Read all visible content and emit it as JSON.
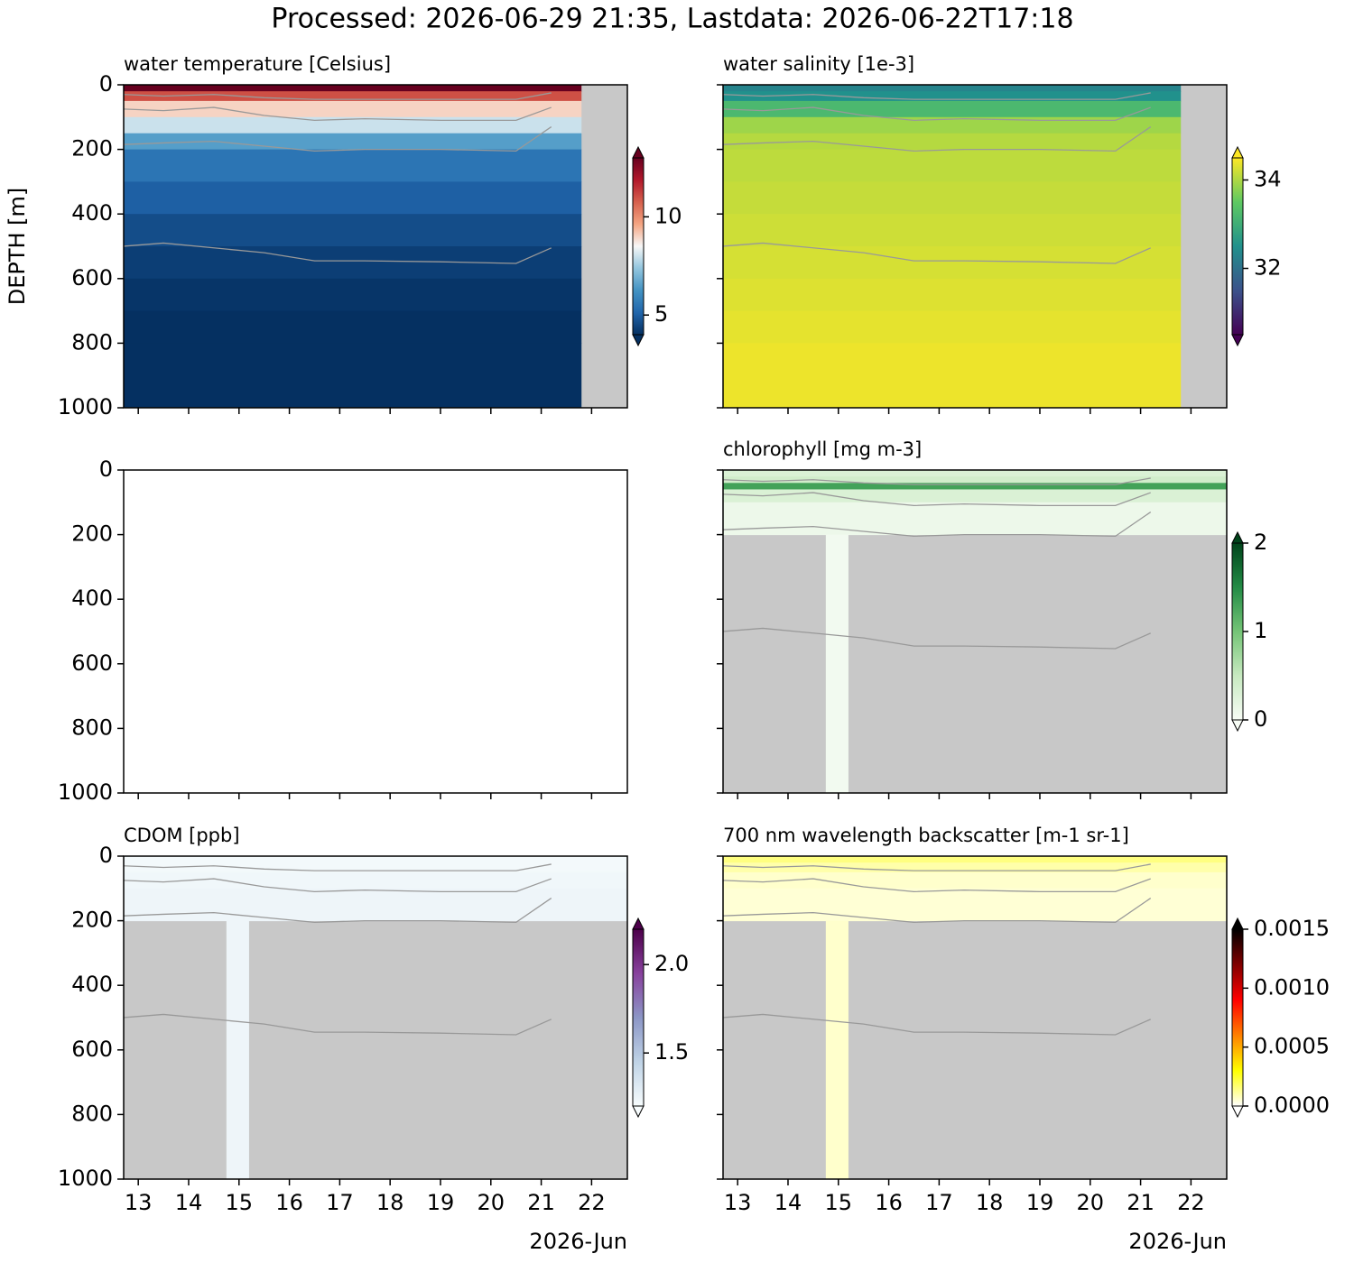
{
  "title": "Processed: 2026-06-29 21:35, Lastdata: 2026-06-22T17:18",
  "chart_data": [
    {
      "type": "heatmap",
      "title": "water temperature [Celsius]",
      "ylabel": "DEPTH [m]",
      "xlim": [
        12.71,
        22.71
      ],
      "xticks": [
        13,
        14,
        15,
        16,
        17,
        18,
        19,
        20,
        21,
        22
      ],
      "ylim": [
        1000,
        0
      ],
      "yticks": [
        0,
        200,
        400,
        600,
        800,
        1000
      ],
      "colormap": [
        "#053061",
        "#2166ac",
        "#4393c3",
        "#92c5de",
        "#f7f7f7",
        "#f4a582",
        "#d6604d",
        "#b2182b",
        "#67001f"
      ],
      "clim": [
        4,
        13
      ],
      "cbar_ticks": [
        5,
        10
      ],
      "depths": [
        0,
        20,
        50,
        100,
        150,
        200,
        300,
        400,
        500,
        600,
        700,
        800,
        1000
      ],
      "values": [
        13,
        11,
        9,
        8,
        6.5,
        5.5,
        5,
        4.6,
        4.3,
        4.1,
        4,
        3.9
      ],
      "x_end": 21.8,
      "max_depth": 1000,
      "contours": [
        {
          "x": [
            12.7,
            13.5,
            14.5,
            15.5,
            16.5,
            17.5,
            19,
            20.5,
            21.2
          ],
          "y": [
            30,
            35,
            30,
            40,
            45,
            45,
            45,
            45,
            25
          ]
        },
        {
          "x": [
            12.7,
            13.5,
            14.5,
            15.5,
            16.5,
            17.5,
            19,
            20.5,
            21.2
          ],
          "y": [
            75,
            80,
            70,
            95,
            110,
            105,
            110,
            110,
            70
          ]
        },
        {
          "x": [
            12.7,
            13.5,
            14.5,
            15.5,
            16.5,
            17.5,
            19,
            20.5,
            21.2
          ],
          "y": [
            185,
            180,
            175,
            190,
            205,
            200,
            200,
            205,
            130
          ]
        },
        {
          "x": [
            12.7,
            13.5,
            14.5,
            15.5,
            16.5,
            17.5,
            19,
            20.5,
            21.2
          ],
          "y": [
            500,
            490,
            505,
            520,
            545,
            545,
            548,
            553,
            505
          ]
        }
      ]
    },
    {
      "type": "heatmap",
      "title": "water salinity [1e-3]",
      "xlim": [
        12.71,
        22.71
      ],
      "xticks": [
        13,
        14,
        15,
        16,
        17,
        18,
        19,
        20,
        21,
        22
      ],
      "ylim": [
        1000,
        0
      ],
      "yticks": [
        0,
        200,
        400,
        600,
        800,
        1000
      ],
      "colormap": [
        "#440154",
        "#3b528b",
        "#21918c",
        "#5ec962",
        "#fde725"
      ],
      "clim": [
        30.5,
        34.5
      ],
      "cbar_ticks": [
        32,
        34
      ],
      "depths": [
        0,
        20,
        50,
        100,
        150,
        200,
        300,
        400,
        500,
        600,
        700,
        800,
        1000
      ],
      "values": [
        32.3,
        32.5,
        33.2,
        33.9,
        34.05,
        34.1,
        34.15,
        34.2,
        34.25,
        34.3,
        34.35,
        34.4
      ],
      "x_end": 21.8,
      "max_depth": 1000,
      "contours": [
        {
          "x": [
            12.7,
            13.5,
            14.5,
            15.5,
            16.5,
            17.5,
            19,
            20.5,
            21.2
          ],
          "y": [
            30,
            35,
            30,
            40,
            45,
            45,
            45,
            45,
            25
          ]
        },
        {
          "x": [
            12.7,
            13.5,
            14.5,
            15.5,
            16.5,
            17.5,
            19,
            20.5,
            21.2
          ],
          "y": [
            75,
            80,
            70,
            95,
            110,
            105,
            110,
            110,
            70
          ]
        },
        {
          "x": [
            12.7,
            13.5,
            14.5,
            15.5,
            16.5,
            17.5,
            19,
            20.5,
            21.2
          ],
          "y": [
            185,
            180,
            175,
            190,
            205,
            200,
            200,
            205,
            130
          ]
        },
        {
          "x": [
            12.7,
            13.5,
            14.5,
            15.5,
            16.5,
            17.5,
            19,
            20.5,
            21.2
          ],
          "y": [
            500,
            490,
            505,
            520,
            545,
            545,
            548,
            553,
            505
          ]
        }
      ]
    },
    {
      "type": "empty",
      "xlim": [
        12.71,
        22.71
      ],
      "xticks": [
        13,
        14,
        15,
        16,
        17,
        18,
        19,
        20,
        21,
        22
      ],
      "ylim": [
        1000,
        0
      ],
      "yticks": [
        0,
        200,
        400,
        600,
        800,
        1000
      ]
    },
    {
      "type": "heatmap",
      "title": "chlorophyll [mg m-3]",
      "xlim": [
        12.71,
        22.71
      ],
      "xticks": [
        13,
        14,
        15,
        16,
        17,
        18,
        19,
        20,
        21,
        22
      ],
      "ylim": [
        1000,
        0
      ],
      "yticks": [
        0,
        200,
        400,
        600,
        800,
        1000
      ],
      "colormap": [
        "#f7fcf5",
        "#c7e9c0",
        "#74c476",
        "#238b45",
        "#00441b"
      ],
      "clim": [
        0,
        2
      ],
      "cbar_ticks": [
        0,
        1,
        2
      ],
      "depths": [
        0,
        20,
        40,
        60,
        100,
        200
      ],
      "values": [
        0.3,
        0.4,
        1.3,
        0.3,
        0.1
      ],
      "x_end": 22.7,
      "max_depth": 200,
      "strip_x": [
        14.75,
        15.2
      ],
      "strip_value": 0.05,
      "contours": [
        {
          "x": [
            12.7,
            13.5,
            14.5,
            15.5,
            16.5,
            17.5,
            19,
            20.5,
            21.2
          ],
          "y": [
            30,
            35,
            30,
            40,
            45,
            45,
            45,
            45,
            25
          ]
        },
        {
          "x": [
            12.7,
            13.5,
            14.5,
            15.5,
            16.5,
            17.5,
            19,
            20.5,
            21.2
          ],
          "y": [
            75,
            80,
            70,
            95,
            110,
            105,
            110,
            110,
            70
          ]
        },
        {
          "x": [
            12.7,
            13.5,
            14.5,
            15.5,
            16.5,
            17.5,
            19,
            20.5,
            21.2
          ],
          "y": [
            185,
            180,
            175,
            190,
            205,
            200,
            200,
            205,
            130
          ]
        },
        {
          "x": [
            12.7,
            13.5,
            14.5,
            15.5,
            16.5,
            17.5,
            19,
            20.5,
            21.2
          ],
          "y": [
            500,
            490,
            505,
            520,
            545,
            545,
            548,
            553,
            505
          ]
        }
      ]
    },
    {
      "type": "heatmap",
      "title": "CDOM [ppb]",
      "x_offset_label": "2026-Jun",
      "xlim": [
        12.71,
        22.71
      ],
      "xticks": [
        13,
        14,
        15,
        16,
        17,
        18,
        19,
        20,
        21,
        22
      ],
      "ylim": [
        1000,
        0
      ],
      "yticks": [
        0,
        200,
        400,
        600,
        800,
        1000
      ],
      "colormap": [
        "#f7fcfd",
        "#bfd3e6",
        "#8c96c6",
        "#88419d",
        "#4d004b"
      ],
      "clim": [
        1.2,
        2.2
      ],
      "cbar_ticks": [
        1.5,
        {
          "value": 2,
          "label": "2.0"
        }
      ],
      "depths": [
        0,
        50,
        100,
        200
      ],
      "values": [
        1.22,
        1.23,
        1.24
      ],
      "x_end": 22.7,
      "max_depth": 200,
      "strip_x": [
        14.75,
        15.2
      ],
      "strip_value": 1.24,
      "contours": [
        {
          "x": [
            12.7,
            13.5,
            14.5,
            15.5,
            16.5,
            17.5,
            19,
            20.5,
            21.2
          ],
          "y": [
            30,
            35,
            30,
            40,
            45,
            45,
            45,
            45,
            25
          ]
        },
        {
          "x": [
            12.7,
            13.5,
            14.5,
            15.5,
            16.5,
            17.5,
            19,
            20.5,
            21.2
          ],
          "y": [
            75,
            80,
            70,
            95,
            110,
            105,
            110,
            110,
            70
          ]
        },
        {
          "x": [
            12.7,
            13.5,
            14.5,
            15.5,
            16.5,
            17.5,
            19,
            20.5,
            21.2
          ],
          "y": [
            185,
            180,
            175,
            190,
            205,
            200,
            200,
            205,
            130
          ]
        },
        {
          "x": [
            12.7,
            13.5,
            14.5,
            15.5,
            16.5,
            17.5,
            19,
            20.5,
            21.2
          ],
          "y": [
            500,
            490,
            505,
            520,
            545,
            545,
            548,
            553,
            505
          ]
        }
      ]
    },
    {
      "type": "heatmap",
      "title": "700 nm wavelength backscatter [m-1 sr-1]",
      "x_offset_label": "2026-Jun",
      "xlim": [
        12.71,
        22.71
      ],
      "xticks": [
        13,
        14,
        15,
        16,
        17,
        18,
        19,
        20,
        21,
        22
      ],
      "ylim": [
        1000,
        0
      ],
      "yticks": [
        0,
        200,
        400,
        600,
        800,
        1000
      ],
      "colormap": [
        "#ffffff",
        "#ffff00",
        "#ff8000",
        "#ff0000",
        "#800000",
        "#000000"
      ],
      "clim": [
        0,
        0.0015
      ],
      "cbar_ticks": [
        {
          "value": 0,
          "label": "0.0000"
        },
        0.0005,
        {
          "value": 0.001,
          "label": "0.0010"
        },
        0.0015
      ],
      "depths": [
        0,
        20,
        50,
        100,
        200
      ],
      "values": [
        0.00015,
        0.0001,
        6e-05,
        5e-05
      ],
      "x_end": 22.7,
      "max_depth": 200,
      "strip_x": [
        14.75,
        15.2
      ],
      "strip_value": 6e-05,
      "contours": [
        {
          "x": [
            12.7,
            13.5,
            14.5,
            15.5,
            16.5,
            17.5,
            19,
            20.5,
            21.2
          ],
          "y": [
            30,
            35,
            30,
            40,
            45,
            45,
            45,
            45,
            25
          ]
        },
        {
          "x": [
            12.7,
            13.5,
            14.5,
            15.5,
            16.5,
            17.5,
            19,
            20.5,
            21.2
          ],
          "y": [
            75,
            80,
            70,
            95,
            110,
            105,
            110,
            110,
            70
          ]
        },
        {
          "x": [
            12.7,
            13.5,
            14.5,
            15.5,
            16.5,
            17.5,
            19,
            20.5,
            21.2
          ],
          "y": [
            185,
            180,
            175,
            190,
            205,
            200,
            200,
            205,
            130
          ]
        },
        {
          "x": [
            12.7,
            13.5,
            14.5,
            15.5,
            16.5,
            17.5,
            19,
            20.5,
            21.2
          ],
          "y": [
            500,
            490,
            505,
            520,
            545,
            545,
            548,
            553,
            505
          ]
        }
      ]
    }
  ]
}
